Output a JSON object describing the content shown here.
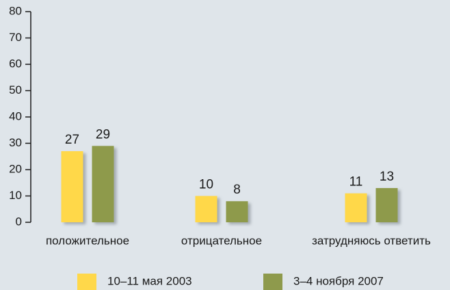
{
  "chart_data": {
    "type": "bar",
    "categories": [
      "положительное",
      "отрицательное",
      "затрудняюсь ответить"
    ],
    "series": [
      {
        "name": "10–11 мая 2003",
        "color": "#ffd84a",
        "values": [
          27,
          10,
          11
        ]
      },
      {
        "name": "3–4 ноября 2007",
        "color": "#8e9a4c",
        "values": [
          29,
          8,
          13
        ]
      }
    ],
    "ylim": [
      0,
      80
    ],
    "yticks": [
      0,
      10,
      20,
      30,
      40,
      50,
      60,
      70,
      80
    ],
    "legend": "bottom"
  }
}
